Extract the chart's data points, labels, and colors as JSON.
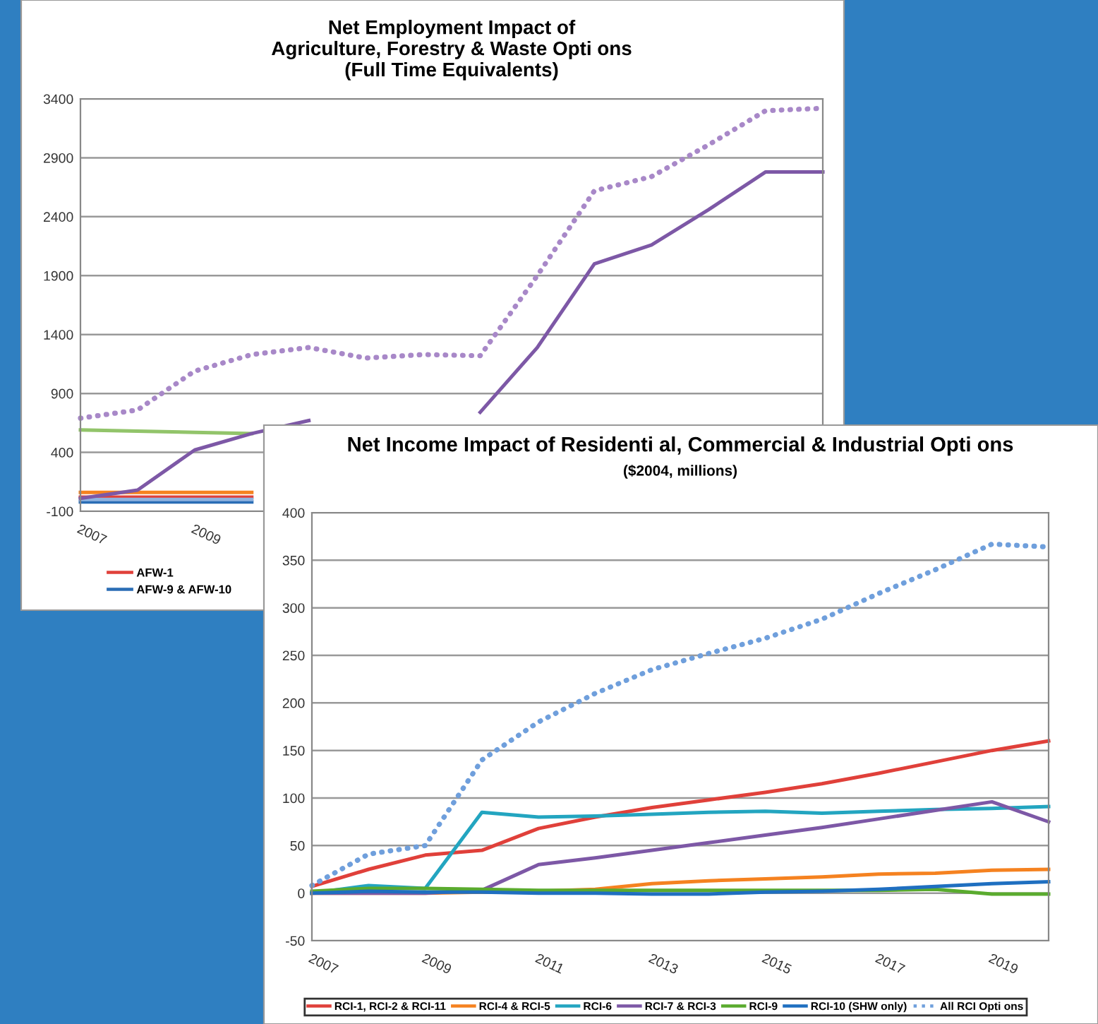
{
  "chart_data": [
    {
      "type": "line",
      "title": "Net Employment Impact of\nAgriculture, Forestry & Waste Opti ons\n(Full Time Equivalents)",
      "x": [
        2007,
        2008,
        2009,
        2010,
        2011,
        2012,
        2013,
        2014,
        2015,
        2016,
        2017,
        2018,
        2019,
        2020
      ],
      "xlim": [
        2007,
        2020
      ],
      "xticks": [
        2007,
        2009
      ],
      "ylim": [
        -100,
        3400
      ],
      "yticks": [
        -100,
        400,
        900,
        1400,
        1900,
        2400,
        2900,
        3400
      ],
      "grid": "y",
      "legend": "bottom",
      "series": [
        {
          "name": "AFW-1",
          "color": "#e0403a",
          "values": [
            20,
            20,
            20,
            20,
            null,
            null,
            null,
            null,
            null,
            null,
            null,
            null,
            null,
            null
          ]
        },
        {
          "color": "#f58220",
          "values": [
            60,
            60,
            60,
            60,
            null,
            null,
            null,
            null,
            null,
            null,
            null,
            null,
            null,
            null
          ]
        },
        {
          "color": "#92c46a",
          "values": [
            590,
            580,
            570,
            560,
            null,
            null,
            null,
            null,
            null,
            null,
            null,
            null,
            null,
            null
          ]
        },
        {
          "name": "AFW-9 & AFW-10",
          "color": "#2a6db5",
          "values": [
            -20,
            -20,
            -20,
            -20,
            null,
            null,
            null,
            null,
            null,
            null,
            null,
            null,
            null,
            null
          ]
        },
        {
          "color": "#8fb3e0",
          "values": [
            0,
            0,
            0,
            0,
            null,
            null,
            null,
            null,
            null,
            null,
            null,
            null,
            null,
            null
          ]
        },
        {
          "color": "#7d58a6",
          "values": [
            10,
            80,
            420,
            560,
            670,
            null,
            null,
            740,
            1290,
            2000,
            2160,
            2460,
            2780,
            2780
          ]
        },
        {
          "color": "#a888c8",
          "line_style": "dotted",
          "values": [
            690,
            760,
            1090,
            1230,
            1290,
            1200,
            1230,
            1220,
            1900,
            2620,
            2740,
            3010,
            3300,
            3320
          ]
        }
      ]
    },
    {
      "type": "line",
      "title": "Net Income Impact of Residenti al, Commercial & Industrial Opti ons",
      "subtitle": "($2004, millions)",
      "x": [
        2007,
        2008,
        2009,
        2010,
        2011,
        2012,
        2013,
        2014,
        2015,
        2016,
        2017,
        2018,
        2019,
        2020
      ],
      "xlim": [
        2007,
        2020
      ],
      "xticks": [
        2007,
        2009,
        2011,
        2013,
        2015,
        2017,
        2019
      ],
      "ylim": [
        -50,
        400
      ],
      "yticks": [
        -50,
        0,
        50,
        100,
        150,
        200,
        250,
        300,
        350,
        400
      ],
      "grid": "y",
      "legend": "bottom",
      "series": [
        {
          "name": "RCI-1, RCI-2 & RCI-11",
          "color": "#e0403a",
          "values": [
            7,
            25,
            40,
            45,
            68,
            80,
            90,
            98,
            106,
            115,
            126,
            138,
            150,
            160
          ]
        },
        {
          "name": "RCI-4 & RCI-5",
          "color": "#f58220",
          "values": [
            0,
            0,
            0,
            1,
            2,
            4,
            10,
            13,
            15,
            17,
            20,
            21,
            24,
            25
          ]
        },
        {
          "name": "RCI-6",
          "color": "#23a5c0",
          "values": [
            0,
            8,
            5,
            85,
            80,
            81,
            83,
            85,
            86,
            84,
            86,
            88,
            89,
            91
          ]
        },
        {
          "name": "RCI-7 & RCI-3",
          "color": "#7d58a6",
          "values": [
            0,
            0,
            0,
            3,
            30,
            37,
            45,
            53,
            61,
            69,
            78,
            87,
            96,
            75
          ]
        },
        {
          "name": "RCI-9",
          "color": "#5aab2e",
          "values": [
            2,
            5,
            5,
            4,
            3,
            3,
            3,
            3,
            3,
            3,
            3,
            4,
            -1,
            -1
          ]
        },
        {
          "name": "RCI-10 (SHW only)",
          "color": "#1f6fc0",
          "values": [
            0,
            2,
            1,
            1,
            0,
            0,
            -1,
            -1,
            1,
            2,
            4,
            7,
            10,
            12
          ]
        },
        {
          "name": "All RCI Opti ons",
          "color": "#6f9fdc",
          "line_style": "dotted",
          "values": [
            8,
            41,
            50,
            140,
            180,
            210,
            235,
            252,
            268,
            288,
            315,
            340,
            367,
            364
          ]
        }
      ]
    }
  ]
}
